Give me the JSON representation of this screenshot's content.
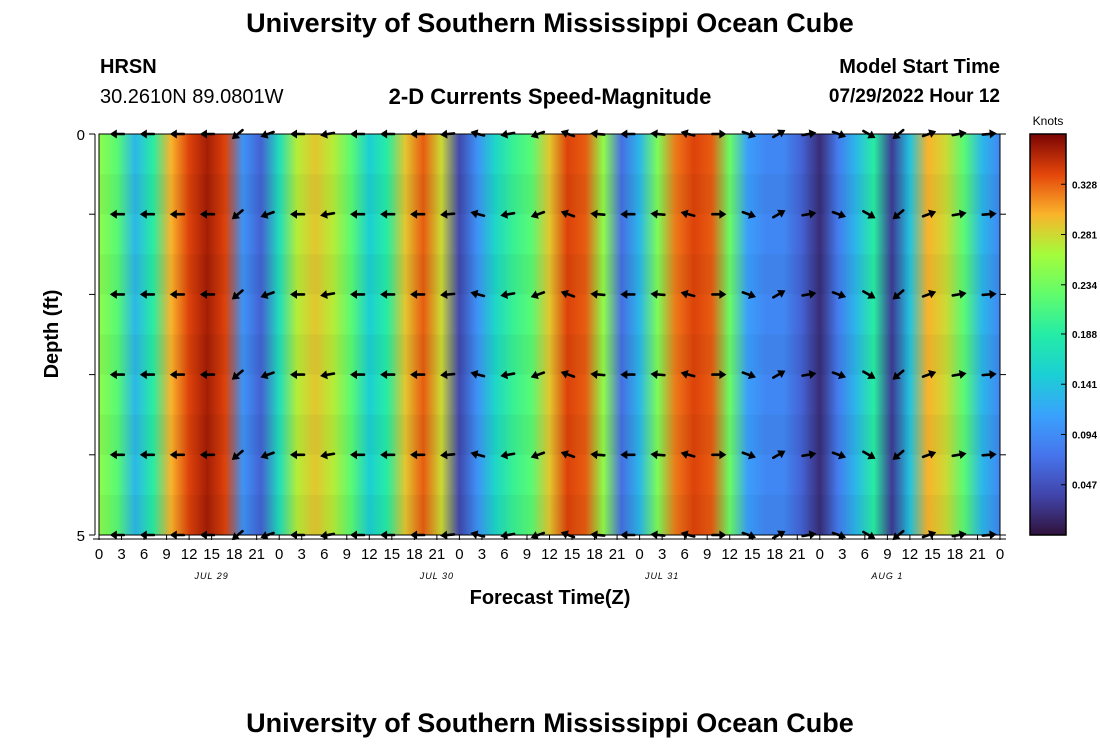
{
  "header": {
    "title": "University of Southern Mississippi Ocean Cube",
    "station_code": "HRSN",
    "coordinates": "30.2610N  89.0801W",
    "subtitle": "2-D Currents Speed-Magnitude",
    "model_start_label": "Model Start Time",
    "model_start_value": "07/29/2022 Hour 12"
  },
  "footer": {
    "title": "University of Southern Mississippi Ocean Cube"
  },
  "chart_data": {
    "type": "heatmap",
    "title": "2-D Currents Speed-Magnitude",
    "xlabel": "Forecast Time(Z)",
    "ylabel": "Depth (ft)",
    "x_hours": [
      0,
      120
    ],
    "xlim": [
      0,
      120
    ],
    "ylim": [
      0,
      5
    ],
    "y_ticks": [
      "0",
      "5"
    ],
    "x_tick_labels": [
      "0",
      "3",
      "6",
      "9",
      "12",
      "15",
      "18",
      "21",
      "0",
      "3",
      "6",
      "9",
      "12",
      "15",
      "18",
      "21",
      "0",
      "3",
      "6",
      "9",
      "12",
      "15",
      "18",
      "21",
      "0",
      "3",
      "6",
      "9",
      "12",
      "15",
      "18",
      "21",
      "0",
      "3",
      "6",
      "9",
      "12",
      "15",
      "18",
      "21",
      "0"
    ],
    "date_labels": [
      {
        "text": "JUL 29",
        "hour": 15
      },
      {
        "text": "JUL 30",
        "hour": 45
      },
      {
        "text": "JUL 31",
        "hour": 75
      },
      {
        "text": "AUG 1",
        "hour": 105
      }
    ],
    "colorbar": {
      "unit": "Knots",
      "min": 0.0,
      "max": 0.375,
      "ticks": [
        "0.047",
        "0.094",
        "0.141",
        "0.188",
        "0.234",
        "0.281",
        "0.328"
      ],
      "tick_values": [
        0.047,
        0.094,
        0.141,
        0.188,
        0.234,
        0.281,
        0.328
      ]
    },
    "speed_knots": [
      0.25,
      0.22,
      0.13,
      0.19,
      0.3,
      0.34,
      0.36,
      0.34,
      0.1,
      0.06,
      0.17,
      0.27,
      0.29,
      0.27,
      0.22,
      0.15,
      0.19,
      0.29,
      0.33,
      0.28,
      0.04,
      0.1,
      0.16,
      0.2,
      0.22,
      0.29,
      0.34,
      0.33,
      0.25,
      0.07,
      0.13,
      0.24,
      0.32,
      0.34,
      0.33,
      0.23,
      0.11,
      0.09,
      0.09,
      0.06,
      0.02,
      0.08,
      0.13,
      0.19,
      0.03,
      0.14,
      0.3,
      0.28,
      0.22,
      0.13,
      0.09
    ],
    "arrow_hours": [
      2.5,
      6.5,
      10.5,
      14.5,
      18.5,
      22.5,
      26.5,
      30.5,
      34.5,
      38.5,
      42.5,
      46.5,
      50.5,
      54.5,
      58.5,
      62.5,
      66.5,
      70.5,
      74.5,
      78.5,
      82.5,
      86.5,
      90.5,
      94.5,
      98.5,
      102.5,
      106.5,
      110.5,
      114.5,
      118.5
    ],
    "arrow_depths": [
      0,
      1,
      2,
      3,
      4,
      5
    ],
    "arrow_dir_deg": [
      180,
      180,
      180,
      180,
      140,
      160,
      180,
      170,
      180,
      180,
      180,
      175,
      195,
      170,
      160,
      200,
      185,
      180,
      185,
      195,
      0,
      20,
      330,
      350,
      20,
      30,
      140,
      340,
      350,
      355
    ]
  }
}
